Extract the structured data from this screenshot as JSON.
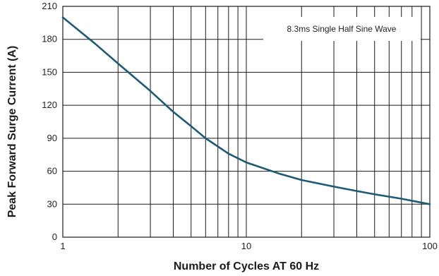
{
  "chart_data": {
    "type": "line",
    "xscale": "log",
    "xlabel": "Number of Cycles AT 60 Hz",
    "ylabel": "Peak Forward Surge Current (A)",
    "xlim": [
      1,
      100
    ],
    "ylim": [
      0,
      210
    ],
    "xticks": [
      1,
      10,
      100
    ],
    "xtick_labels": [
      "1",
      "10",
      "100"
    ],
    "yticks": [
      0,
      30,
      60,
      90,
      120,
      150,
      180,
      210
    ],
    "ytick_labels": [
      "0",
      "30",
      "60",
      "90",
      "120",
      "150",
      "180",
      "210"
    ],
    "grid": true,
    "annotation": "8.3ms Single Half Sine Wave",
    "line_color": "#1f5a73",
    "series": [
      {
        "x": [
          1,
          1.5,
          2,
          3,
          4,
          5,
          6,
          8,
          10,
          15,
          20,
          30,
          40,
          50,
          70,
          100
        ],
        "values": [
          200,
          176,
          158,
          133,
          114,
          101,
          90,
          76,
          68,
          58,
          52,
          46,
          42,
          39,
          35,
          30
        ]
      }
    ]
  }
}
